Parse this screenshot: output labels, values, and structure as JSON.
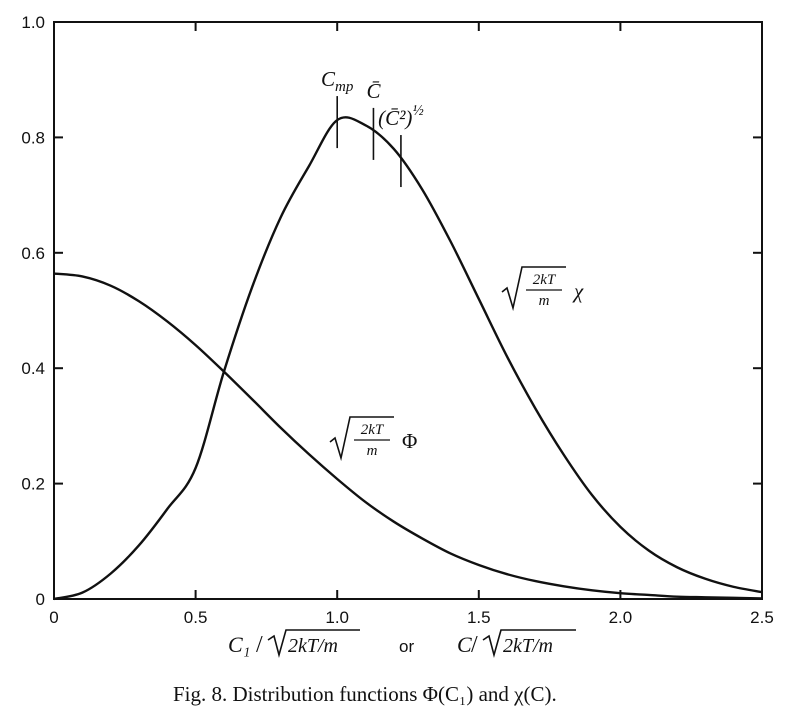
{
  "caption": "Fig. 8. Distribution functions Φ(C₁) and χ(C).",
  "xlabel": {
    "left_num": "C₁",
    "or": "or",
    "right_num": "C",
    "sqrt_body": "2kT/m"
  },
  "chart_data": {
    "type": "line",
    "xlim": [
      0,
      2.5
    ],
    "ylim": [
      0,
      1.0
    ],
    "x_ticks": [
      "0",
      "0.5",
      "1.0",
      "1.5",
      "2.0",
      "2.5"
    ],
    "y_ticks": [
      "0",
      "0.2",
      "0.4",
      "0.6",
      "0.8",
      "1.0"
    ],
    "grid": false,
    "series": [
      {
        "name": "√(2kT/m) χ",
        "label_parts": {
          "frac_num": "2kT",
          "frac_den": "m",
          "symbol": "χ"
        },
        "x": [
          0,
          0.1,
          0.2,
          0.3,
          0.4,
          0.5,
          0.6,
          0.7,
          0.8,
          0.9,
          1.0,
          1.1,
          1.2,
          1.3,
          1.4,
          1.5,
          1.6,
          1.7,
          1.8,
          1.9,
          2.0,
          2.1,
          2.2,
          2.3,
          2.4,
          2.5
        ],
        "y": [
          0,
          0.011,
          0.044,
          0.093,
          0.156,
          0.227,
          0.394,
          0.541,
          0.661,
          0.75,
          0.83,
          0.821,
          0.78,
          0.71,
          0.62,
          0.52,
          0.42,
          0.33,
          0.25,
          0.18,
          0.125,
          0.084,
          0.055,
          0.035,
          0.021,
          0.012
        ]
      },
      {
        "name": "√(2kT/m) Φ",
        "label_parts": {
          "frac_num": "2kT",
          "frac_den": "m",
          "symbol": "Φ"
        },
        "x": [
          0,
          0.1,
          0.2,
          0.3,
          0.4,
          0.5,
          0.6,
          0.7,
          0.8,
          0.9,
          1.0,
          1.1,
          1.2,
          1.3,
          1.4,
          1.5,
          1.6,
          1.7,
          1.8,
          1.9,
          2.0,
          2.1,
          2.2,
          2.3,
          2.4,
          2.5
        ],
        "y": [
          0.564,
          0.559,
          0.543,
          0.516,
          0.481,
          0.44,
          0.394,
          0.346,
          0.297,
          0.251,
          0.208,
          0.168,
          0.134,
          0.105,
          0.079,
          0.059,
          0.043,
          0.031,
          0.022,
          0.015,
          0.01,
          0.007,
          0.004,
          0.003,
          0.002,
          0.001
        ]
      }
    ],
    "annotations": [
      {
        "text": "C",
        "sub": "mp",
        "x": 1.0
      },
      {
        "text": "C̄",
        "sub": "",
        "x": 1.128
      },
      {
        "text": "(C̄²)",
        "sup": "½",
        "x": 1.225
      }
    ]
  }
}
